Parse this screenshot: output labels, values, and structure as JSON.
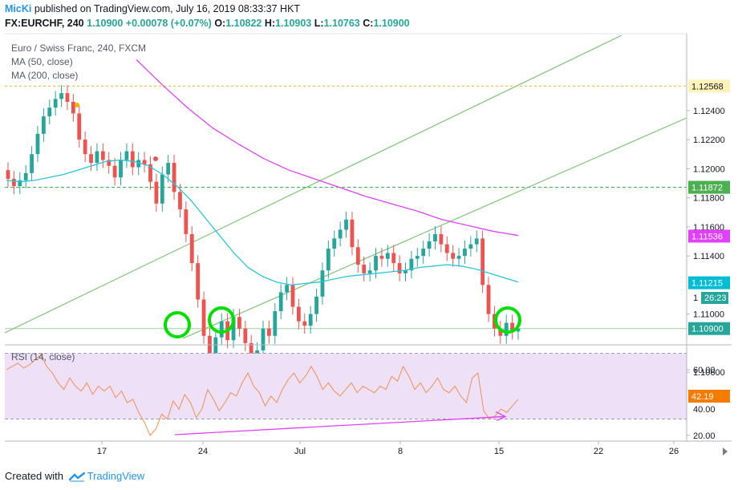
{
  "header": {
    "author": "MicKi",
    "published_text": " published on TradingView.com, July 16, 2019 08:33:37 HKT",
    "symbol": "FX:EURCHF, 240",
    "last": "1.10900",
    "change": "+0.00078 (+0.07%)",
    "o_label": "O:",
    "o_value": "1.10822",
    "h_label": "H:",
    "h_value": "1.10903",
    "l_label": "L:",
    "l_value": "1.10763",
    "c_label": "C:",
    "c_value": "1.10900"
  },
  "footer": {
    "created_with": "Created with",
    "brand": "TradingView"
  },
  "colors": {
    "bull": "#26a69a",
    "bear": "#ef5350",
    "ma50": "#26c6da",
    "ma200": "#e040fb",
    "channel": "#7cc576",
    "rsi": "#f09050",
    "rsi_band": "#ede0f7",
    "annotation": "#e040fb",
    "circle": "#00e000",
    "yellow_level": "#f5e79e",
    "green_level": "#4caf50"
  },
  "chart_data": [
    {
      "type": "line",
      "title": "Euro / Swiss Franc, 240, FXCM",
      "indicators": [
        "MA (50, close)",
        "MA (200, close)"
      ],
      "x_ticks": [
        "17",
        "24",
        "Jul",
        "8",
        "15",
        "22",
        "26"
      ],
      "y_ticks": [
        "1.12400",
        "1.12200",
        "1.12000",
        "1.11800",
        "1.11600",
        "1.11400",
        "1.11000",
        "1.10600"
      ],
      "ylim": [
        1.104,
        1.1275
      ],
      "price_labels": [
        {
          "name": "level",
          "value": "1.12568"
        },
        {
          "name": "level",
          "value": "1.11872"
        },
        {
          "name": "MA (200, close)",
          "value": "1.11536"
        },
        {
          "name": "MA (50, close)",
          "value": "1.11215"
        },
        {
          "name": "last",
          "value": "1.10900"
        },
        {
          "name": "countdown",
          "value": "26:23"
        }
      ],
      "horizontal_levels": [
        1.12568,
        1.11872
      ],
      "support_level": 1.1062,
      "price_series": [
        1.1193,
        1.1188,
        1.1192,
        1.1197,
        1.121,
        1.1224,
        1.1236,
        1.1242,
        1.1248,
        1.1252,
        1.1246,
        1.1238,
        1.122,
        1.121,
        1.1204,
        1.1212,
        1.1206,
        1.1202,
        1.1194,
        1.1206,
        1.1212,
        1.1201,
        1.1206,
        1.1203,
        1.1191,
        1.1176,
        1.1196,
        1.1204,
        1.1184,
        1.1172,
        1.1155,
        1.1135,
        1.111,
        1.1085,
        1.107,
        1.1084,
        1.1095,
        1.1082,
        1.1098,
        1.109,
        1.108,
        1.107,
        1.1075,
        1.109,
        1.1085,
        1.1102,
        1.1115,
        1.112,
        1.1105,
        1.1095,
        1.1092,
        1.11,
        1.1112,
        1.113,
        1.1145,
        1.1152,
        1.1158,
        1.1165,
        1.1146,
        1.1134,
        1.1128,
        1.113,
        1.114,
        1.1138,
        1.1142,
        1.1135,
        1.1128,
        1.113,
        1.1138,
        1.114,
        1.1145,
        1.115,
        1.1155,
        1.1148,
        1.1142,
        1.1138,
        1.114,
        1.1145,
        1.1148,
        1.1152,
        1.112,
        1.11,
        1.109,
        1.1085,
        1.1094,
        1.1088,
        1.109
      ],
      "ma50_series": [
        1.1192,
        1.1191,
        1.1192,
        1.1194,
        1.1196,
        1.1199,
        1.1202,
        1.1205,
        1.1206,
        1.1205,
        1.1202,
        1.1196,
        1.1188,
        1.1178,
        1.1166,
        1.1154,
        1.1142,
        1.1132,
        1.1126,
        1.1122,
        1.112,
        1.1121,
        1.1122,
        1.1124,
        1.1126,
        1.1127,
        1.1128,
        1.1129,
        1.113,
        1.1132,
        1.1133,
        1.1134,
        1.1133,
        1.1131,
        1.1128,
        1.1125,
        1.1122
      ],
      "ma200_series": [
        1.1275,
        1.1258,
        1.1242,
        1.1228,
        1.1217,
        1.1207,
        1.1199,
        1.1193,
        1.1187,
        1.1181,
        1.1176,
        1.1171,
        1.1165,
        1.1161,
        1.1157,
        1.1154
      ],
      "annotations": [
        {
          "type": "channel",
          "label": ""
        },
        {
          "type": "circle",
          "label": ""
        },
        {
          "type": "arrow",
          "label": ""
        }
      ]
    },
    {
      "type": "line",
      "title": "RSI (14, close)",
      "y_ticks": [
        "60.00",
        "20.00"
      ],
      "ylim": [
        18,
        72
      ],
      "band": [
        30,
        70
      ],
      "last_value": "42.19",
      "hidden_tick": "40.00",
      "rsi_series": [
        60,
        62,
        64,
        61,
        63,
        66,
        69,
        62,
        58,
        52,
        48,
        55,
        50,
        47,
        52,
        45,
        50,
        47,
        50,
        43,
        47,
        40,
        42,
        34,
        28,
        20,
        24,
        33,
        30,
        41,
        36,
        45,
        40,
        31,
        36,
        48,
        42,
        35,
        40,
        46,
        44,
        52,
        58,
        50,
        46,
        38,
        44,
        40,
        48,
        54,
        58,
        52,
        56,
        62,
        56,
        48,
        52,
        47,
        44,
        48,
        52,
        46,
        50,
        48,
        46,
        50,
        48,
        56,
        53,
        62,
        56,
        48,
        52,
        46,
        50,
        55,
        48,
        46,
        50,
        44,
        40,
        55,
        58,
        35,
        30,
        32,
        36,
        34,
        38,
        42
      ],
      "divergence_line": {
        "from": 20.5,
        "to": 31.5
      }
    }
  ]
}
